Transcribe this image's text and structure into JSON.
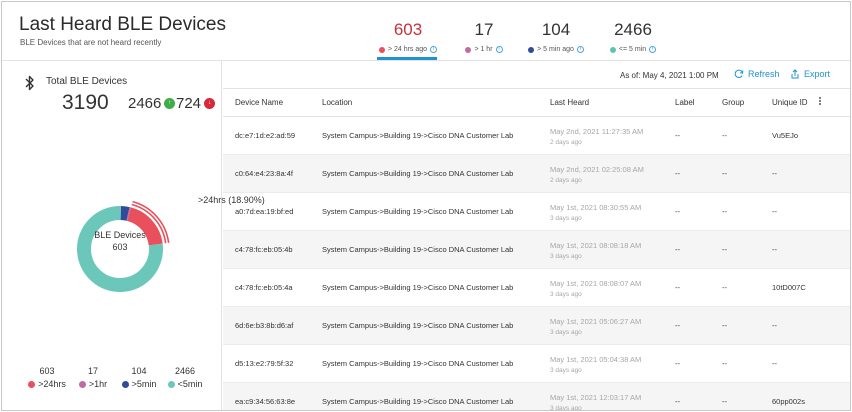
{
  "header": {
    "title": "Last Heard BLE Devices",
    "subtitle": "BLE Devices that are not heard recently"
  },
  "metrics": [
    {
      "value": "603",
      "label": "> 24 hrs ago",
      "color": "#e8505b"
    },
    {
      "value": "17",
      "label": "> 1 hr",
      "color": "#c06aa6"
    },
    {
      "value": "104",
      "label": "> 5 min ago",
      "color": "#2f4b9a"
    },
    {
      "value": "2466",
      "label": "<= 5 min",
      "color": "#5cc3b4"
    }
  ],
  "summary": {
    "total_label": "Total BLE Devices",
    "total": "3190",
    "good_count": "2466",
    "good_badge": "↑",
    "bad_count": "724",
    "bad_badge": "↓"
  },
  "donut": {
    "center_title": "BLE Devices",
    "center_value": "603",
    "callout": ">24hrs (18.90%)",
    "segments": [
      {
        "name": ">24hrs",
        "value": 603,
        "color": "#e8505b"
      },
      {
        "name": ">1hr",
        "value": 17,
        "color": "#c06aa6"
      },
      {
        "name": ">5min",
        "value": 104,
        "color": "#2f4b9a"
      },
      {
        "name": "<5min",
        "value": 2466,
        "color": "#6cc7bb"
      }
    ]
  },
  "legend": [
    {
      "value": "603",
      "label": ">24hrs",
      "color": "#e8505b"
    },
    {
      "value": "17",
      "label": ">1hr",
      "color": "#c06aa6"
    },
    {
      "value": "104",
      "label": ">5min",
      "color": "#2f4b9a"
    },
    {
      "value": "2466",
      "label": "<5min",
      "color": "#6cc7bb"
    }
  ],
  "toolbar": {
    "as_of": "As of: May 4, 2021 1:00 PM",
    "refresh": "Refresh",
    "export": "Export",
    "accent": "#1f93d1"
  },
  "table": {
    "columns": [
      "Device Name",
      "Location",
      "Last Heard",
      "Label",
      "Group",
      "Unique ID"
    ],
    "rows": [
      {
        "name": "dc:e7:1d:e2:ad:59",
        "location": "System Campus->Building 19->Cisco DNA Customer Lab",
        "last_heard": "May 2nd, 2021 11:27:35 AM",
        "ago": "2 days ago",
        "label": "--",
        "group": "--",
        "uid": "Vu5EJo"
      },
      {
        "name": "c0:64:e4:23:8a:4f",
        "location": "System Campus->Building 19->Cisco DNA Customer Lab",
        "last_heard": "May 2nd, 2021 02:25:08 AM",
        "ago": "2 days ago",
        "label": "--",
        "group": "--",
        "uid": "--"
      },
      {
        "name": "a0:7d:ea:19:bf:ed",
        "location": "System Campus->Building 19->Cisco DNA Customer Lab",
        "last_heard": "May 1st, 2021 08:30:55 AM",
        "ago": "3 days ago",
        "label": "--",
        "group": "--",
        "uid": "--"
      },
      {
        "name": "c4:78:fc:eb:05:4b",
        "location": "System Campus->Building 19->Cisco DNA Customer Lab",
        "last_heard": "May 1st, 2021 08:08:18 AM",
        "ago": "3 days ago",
        "label": "--",
        "group": "--",
        "uid": "--"
      },
      {
        "name": "c4:78:fc:eb:05:4a",
        "location": "System Campus->Building 19->Cisco DNA Customer Lab",
        "last_heard": "May 1st, 2021 08:08:07 AM",
        "ago": "3 days ago",
        "label": "--",
        "group": "--",
        "uid": "10tD007C"
      },
      {
        "name": "6d:6e:b3:8b:d6:af",
        "location": "System Campus->Building 19->Cisco DNA Customer Lab",
        "last_heard": "May 1st, 2021 05:06:27 AM",
        "ago": "3 days ago",
        "label": "--",
        "group": "--",
        "uid": "--"
      },
      {
        "name": "d5:13:e2:79:5f:32",
        "location": "System Campus->Building 19->Cisco DNA Customer Lab",
        "last_heard": "May 1st, 2021 05:04:38 AM",
        "ago": "3 days ago",
        "label": "--",
        "group": "--",
        "uid": "--"
      },
      {
        "name": "ea:c9:34:56:63:8e",
        "location": "System Campus->Building 19->Cisco DNA Customer Lab",
        "last_heard": "May 1st, 2021 12:03:17 AM",
        "ago": "3 days ago",
        "label": "--",
        "group": "--",
        "uid": "60pp002s"
      }
    ]
  }
}
